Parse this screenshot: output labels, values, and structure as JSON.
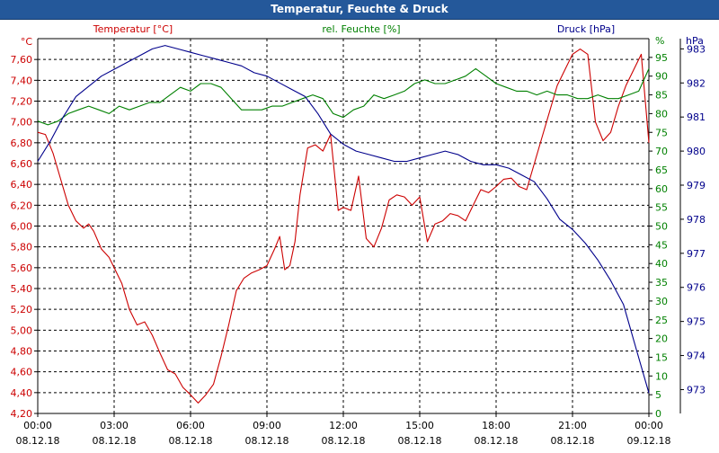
{
  "window": {
    "title": "Temperatur, Feuchte & Druck"
  },
  "colors": {
    "temperature": "#cc0000",
    "humidity": "#008000",
    "pressure": "#00008b",
    "axis": "#000000",
    "grid": "#000000"
  },
  "chart_data": {
    "type": "line",
    "title": "Temperatur, Feuchte & Druck",
    "x_ticks": [
      {
        "time": "00:00",
        "date": "08.12.18"
      },
      {
        "time": "03:00",
        "date": "08.12.18"
      },
      {
        "time": "06:00",
        "date": "08.12.18"
      },
      {
        "time": "09:00",
        "date": "08.12.18"
      },
      {
        "time": "12:00",
        "date": "08.12.18"
      },
      {
        "time": "15:00",
        "date": "08.12.18"
      },
      {
        "time": "18:00",
        "date": "08.12.18"
      },
      {
        "time": "21:00",
        "date": "08.12.18"
      },
      {
        "time": "00:00",
        "date": "09.12.18"
      }
    ],
    "xlim": [
      0,
      24
    ],
    "axes": {
      "temperature": {
        "label": "Temperatur [°C]",
        "unit": "°C",
        "ylim": [
          4.2,
          7.8
        ],
        "ticks": [
          "4,20",
          "4,40",
          "4,60",
          "4,80",
          "5,00",
          "5,20",
          "5,40",
          "5,60",
          "5,80",
          "6,00",
          "6,20",
          "6,40",
          "6,60",
          "6,80",
          "7,00",
          "7,20",
          "7,40",
          "7,60"
        ]
      },
      "humidity": {
        "label": "rel. Feuchte [%]",
        "unit": "%",
        "ylim": [
          0,
          100
        ],
        "ticks": [
          "0",
          "5",
          "10",
          "15",
          "20",
          "25",
          "30",
          "35",
          "40",
          "45",
          "50",
          "55",
          "60",
          "65",
          "70",
          "75",
          "80",
          "85",
          "90",
          "95"
        ]
      },
      "pressure": {
        "label": "Druck [hPa]",
        "unit": "hPa",
        "ylim": [
          972.3,
          983.3
        ],
        "ticks": [
          "973",
          "974",
          "975",
          "976",
          "977",
          "978",
          "979",
          "980",
          "981",
          "982",
          "983"
        ]
      }
    },
    "series": [
      {
        "name": "Temperatur",
        "axis": "temperature",
        "x": [
          0,
          0.3,
          0.6,
          0.9,
          1.2,
          1.5,
          1.8,
          2.0,
          2.2,
          2.5,
          2.8,
          3.0,
          3.3,
          3.6,
          3.9,
          4.2,
          4.5,
          4.8,
          5.1,
          5.4,
          5.7,
          6.0,
          6.3,
          6.6,
          6.9,
          7.2,
          7.5,
          7.8,
          8.1,
          8.4,
          8.7,
          9.0,
          9.3,
          9.5,
          9.7,
          9.9,
          10.1,
          10.3,
          10.6,
          10.9,
          11.2,
          11.5,
          11.8,
          12.0,
          12.3,
          12.6,
          12.9,
          13.2,
          13.5,
          13.8,
          14.1,
          14.4,
          14.7,
          15.0,
          15.3,
          15.6,
          15.9,
          16.2,
          16.5,
          16.8,
          17.1,
          17.4,
          17.7,
          18.0,
          18.3,
          18.6,
          18.9,
          19.2,
          19.5,
          19.8,
          20.1,
          20.4,
          20.7,
          21.0,
          21.3,
          21.6,
          21.9,
          22.2,
          22.5,
          22.8,
          23.1,
          23.4,
          23.7,
          24.0
        ],
        "values": [
          6.9,
          6.88,
          6.7,
          6.45,
          6.2,
          6.05,
          5.98,
          6.02,
          5.95,
          5.78,
          5.7,
          5.6,
          5.45,
          5.2,
          5.05,
          5.08,
          4.95,
          4.78,
          4.62,
          4.58,
          4.45,
          4.38,
          4.3,
          4.38,
          4.48,
          4.75,
          5.05,
          5.38,
          5.5,
          5.55,
          5.58,
          5.62,
          5.78,
          5.9,
          5.58,
          5.62,
          5.85,
          6.3,
          6.75,
          6.78,
          6.72,
          6.88,
          6.15,
          6.18,
          6.15,
          6.48,
          5.88,
          5.8,
          5.98,
          6.25,
          6.3,
          6.28,
          6.2,
          6.28,
          5.85,
          6.02,
          6.05,
          6.12,
          6.1,
          6.05,
          6.2,
          6.35,
          6.32,
          6.38,
          6.45,
          6.46,
          6.38,
          6.35,
          6.6,
          6.85,
          7.1,
          7.35,
          7.5,
          7.65,
          7.7,
          7.65,
          7.0,
          6.82,
          6.9,
          7.15,
          7.35,
          7.5,
          7.65,
          6.8
        ]
      },
      {
        "name": "rel. Feuchte",
        "axis": "humidity",
        "x": [
          0,
          0.4,
          0.8,
          1.2,
          1.6,
          2.0,
          2.4,
          2.8,
          3.2,
          3.6,
          4.0,
          4.4,
          4.8,
          5.2,
          5.6,
          6.0,
          6.4,
          6.8,
          7.2,
          7.6,
          8.0,
          8.4,
          8.8,
          9.2,
          9.6,
          10.0,
          10.4,
          10.8,
          11.2,
          11.6,
          12.0,
          12.4,
          12.8,
          13.2,
          13.6,
          14.0,
          14.4,
          14.8,
          15.2,
          15.6,
          16.0,
          16.4,
          16.8,
          17.2,
          17.6,
          18.0,
          18.4,
          18.8,
          19.2,
          19.6,
          20.0,
          20.4,
          20.8,
          21.2,
          21.6,
          22.0,
          22.4,
          22.8,
          23.2,
          23.6,
          24.0
        ],
        "values": [
          78,
          77,
          78,
          80,
          81,
          82,
          81,
          80,
          82,
          81,
          82,
          83,
          83,
          85,
          87,
          86,
          88,
          88,
          87,
          84,
          81,
          81,
          81,
          82,
          82,
          83,
          84,
          85,
          84,
          80,
          79,
          81,
          82,
          85,
          84,
          85,
          86,
          88,
          89,
          88,
          88,
          89,
          90,
          92,
          90,
          88,
          87,
          86,
          86,
          85,
          86,
          85,
          85,
          84,
          84,
          85,
          84,
          84,
          85,
          86,
          92
        ]
      },
      {
        "name": "Druck",
        "axis": "pressure",
        "x": [
          0,
          0.5,
          1.0,
          1.5,
          2.0,
          2.5,
          3.0,
          3.5,
          4.0,
          4.5,
          5.0,
          5.5,
          6.0,
          6.5,
          7.0,
          7.5,
          8.0,
          8.5,
          9.0,
          9.5,
          10.0,
          10.5,
          11.0,
          11.5,
          12.0,
          12.5,
          13.0,
          13.5,
          14.0,
          14.5,
          15.0,
          15.5,
          16.0,
          16.5,
          17.0,
          17.5,
          18.0,
          18.5,
          19.0,
          19.5,
          20.0,
          20.5,
          21.0,
          21.5,
          22.0,
          22.5,
          23.0,
          23.5,
          24.0
        ],
        "values": [
          979.7,
          980.3,
          981.0,
          981.6,
          981.9,
          982.2,
          982.4,
          982.6,
          982.8,
          983.0,
          983.1,
          983.0,
          982.9,
          982.8,
          982.7,
          982.6,
          982.5,
          982.3,
          982.2,
          982.0,
          981.8,
          981.6,
          981.1,
          980.5,
          980.2,
          980.0,
          979.9,
          979.8,
          979.7,
          979.7,
          979.8,
          979.9,
          980.0,
          979.9,
          979.7,
          979.6,
          979.6,
          979.5,
          979.3,
          979.1,
          978.6,
          978.0,
          977.7,
          977.3,
          976.8,
          976.2,
          975.5,
          974.2,
          972.9
        ]
      }
    ]
  }
}
